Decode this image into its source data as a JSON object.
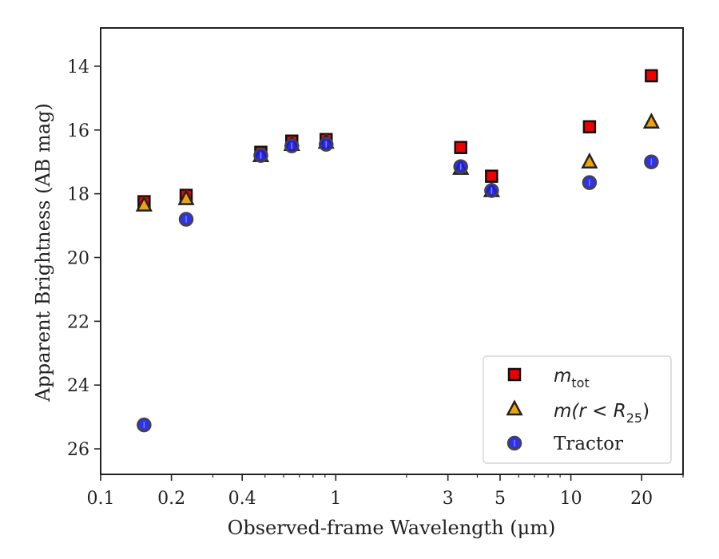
{
  "chart_data": {
    "type": "scatter",
    "title": "",
    "xlabel": "Observed-frame Wavelength (μm)",
    "ylabel": "Apparent Brightness (AB mag)",
    "xscale": "log",
    "xlim": [
      0.1,
      30
    ],
    "ylim": [
      26.8,
      12.8
    ],
    "y_inverted": true,
    "xticks": [
      0.1,
      0.2,
      0.4,
      1,
      3,
      5,
      10,
      20
    ],
    "xtick_labels": [
      "0.1",
      "0.2",
      "0.4",
      "1",
      "3",
      "5",
      "10",
      "20"
    ],
    "yticks": [
      14,
      16,
      18,
      20,
      22,
      24,
      26
    ],
    "ytick_labels": [
      "14",
      "16",
      "18",
      "20",
      "22",
      "24",
      "26"
    ],
    "legend_position": "lower-right",
    "series": [
      {
        "name": "m_tot",
        "legend_main": "m",
        "legend_sub": "tot",
        "marker": "square",
        "color": "#ee0000",
        "x": [
          0.153,
          0.231,
          0.48,
          0.65,
          0.91,
          3.4,
          4.6,
          12.0,
          22.0
        ],
        "y": [
          18.25,
          18.05,
          16.7,
          16.35,
          16.3,
          16.55,
          17.45,
          15.9,
          14.3
        ]
      },
      {
        "name": "m(r < R25)",
        "legend_main": "m(r < R",
        "legend_sub": "25",
        "legend_tail": ")",
        "marker": "triangle",
        "color": "#f0a30a",
        "x": [
          0.153,
          0.231,
          0.48,
          0.65,
          0.91,
          3.4,
          4.6,
          12.0,
          22.0
        ],
        "y": [
          18.35,
          18.15,
          16.8,
          16.45,
          16.38,
          17.2,
          17.9,
          17.0,
          15.75
        ]
      },
      {
        "name": "Tractor",
        "legend_main": "Tractor",
        "marker": "circle",
        "color": "#1a1aee",
        "x": [
          0.153,
          0.231,
          0.48,
          0.65,
          0.91,
          3.4,
          4.6,
          12.0,
          22.0
        ],
        "y": [
          25.25,
          18.8,
          16.8,
          16.5,
          16.45,
          17.15,
          17.9,
          17.65,
          17.0
        ]
      }
    ]
  }
}
